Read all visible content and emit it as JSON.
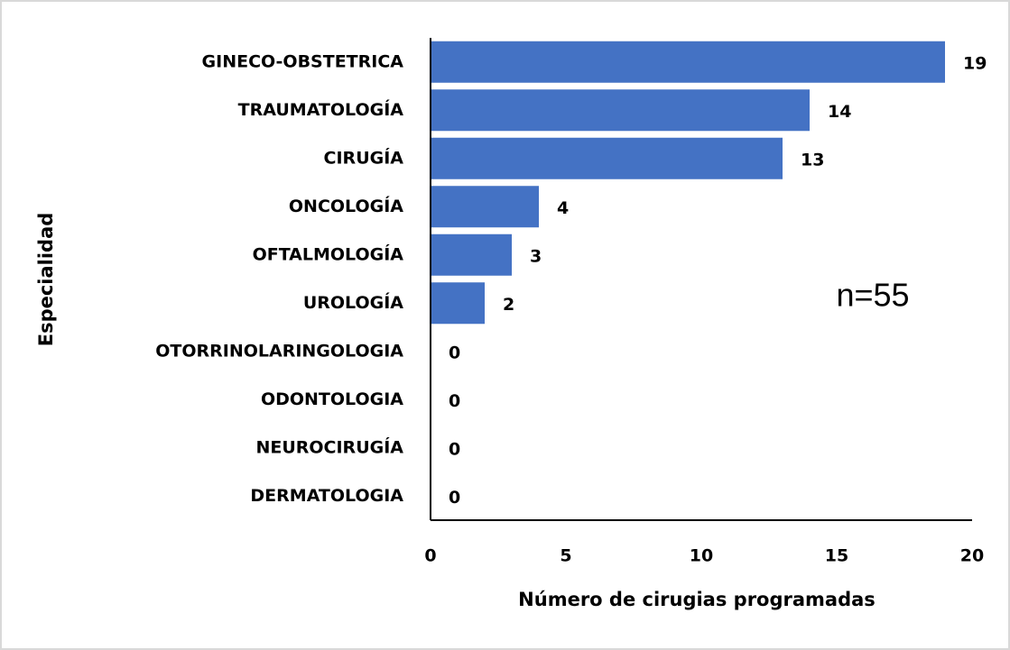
{
  "chart_data": {
    "type": "bar",
    "orientation": "horizontal",
    "categories": [
      "GINECO-OBSTETRICA",
      "TRAUMATOLOGÍA",
      "CIRUGÍA",
      "ONCOLOGÍA",
      "OFTALMOLOGÍA",
      "UROLOGÍA",
      "OTORRINOLARINGOLOGIA",
      "ODONTOLOGIA",
      "NEUROCIRUGÍA",
      "DERMATOLOGIA"
    ],
    "values": [
      19,
      14,
      13,
      4,
      3,
      2,
      0,
      0,
      0,
      0
    ],
    "color": "#4472c4",
    "xlim": [
      0,
      20
    ],
    "xticks": [
      0,
      5,
      10,
      15,
      20
    ],
    "x_label": "Número de cirugias programadas",
    "y_label": "Especialidad",
    "annotation": "n=55",
    "grid": false
  }
}
